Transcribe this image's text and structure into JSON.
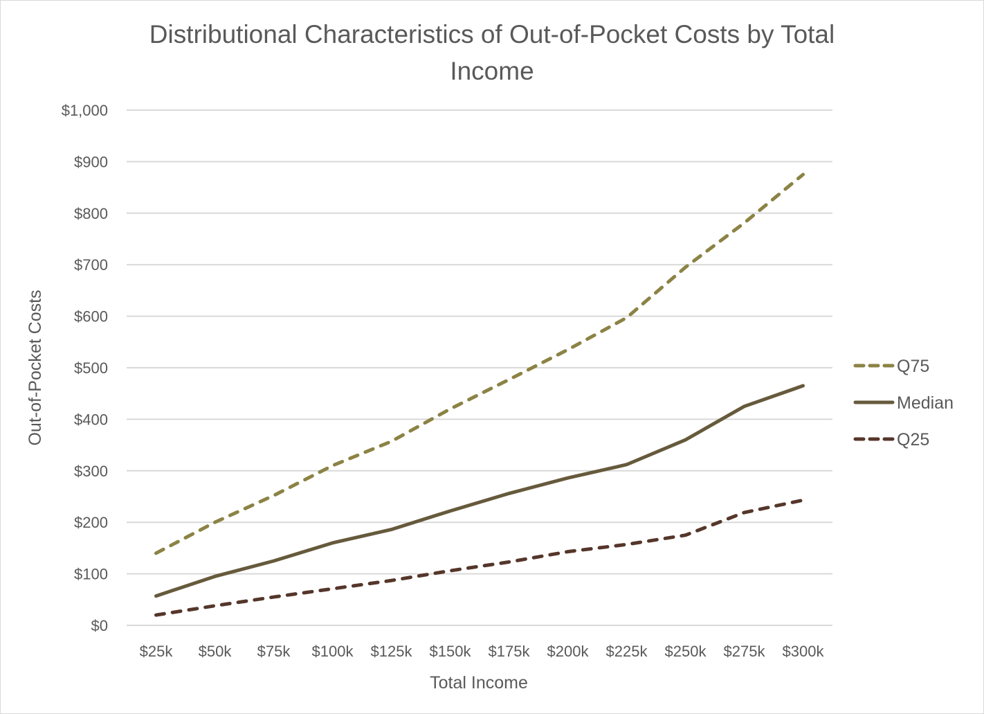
{
  "chart_data": {
    "type": "line",
    "title": "Distributional Characteristics of Out-of-Pocket Costs by Total Income",
    "title_lines": [
      "Distributional Characteristics of Out-of-Pocket Costs by Total",
      "Income"
    ],
    "xlabel": "Total Income",
    "ylabel": "Out-of-Pocket Costs",
    "categories": [
      "$25k",
      "$50k",
      "$75k",
      "$100k",
      "$125k",
      "$150k",
      "$175k",
      "$200k",
      "$225k",
      "$250k",
      "$275k",
      "$300k"
    ],
    "ylim": [
      0,
      1000
    ],
    "yticks": [
      0,
      100,
      200,
      300,
      400,
      500,
      600,
      700,
      800,
      900,
      1000
    ],
    "ytick_labels": [
      "$0",
      "$100",
      "$200",
      "$300",
      "$400",
      "$500",
      "$600",
      "$700",
      "$800",
      "$900",
      "$1,000"
    ],
    "grid": true,
    "legend_position": "right",
    "series": [
      {
        "name": "Q75",
        "style": "dashed",
        "color": "#8b8344",
        "values": [
          140,
          200,
          252,
          310,
          357,
          420,
          477,
          535,
          597,
          695,
          781,
          875
        ]
      },
      {
        "name": "Median",
        "style": "solid",
        "color": "#665a3c",
        "values": [
          57,
          95,
          125,
          160,
          186,
          222,
          256,
          286,
          312,
          360,
          425,
          465
        ]
      },
      {
        "name": "Q25",
        "style": "dashed",
        "color": "#55362a",
        "values": [
          20,
          38,
          55,
          71,
          87,
          106,
          123,
          143,
          157,
          175,
          219,
          243
        ]
      }
    ]
  }
}
